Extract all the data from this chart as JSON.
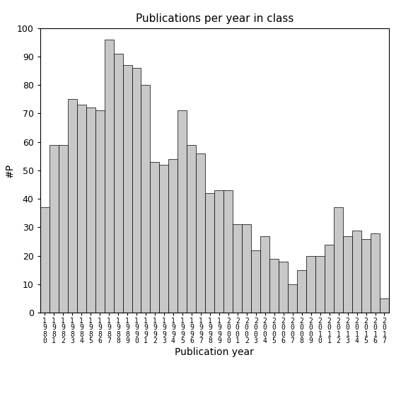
{
  "title": "Publications per year in class",
  "xlabel": "Publication year",
  "ylabel": "#P",
  "bar_color": "#c8c8c8",
  "bar_edge_color": "#000000",
  "bar_edge_width": 0.5,
  "ylim": [
    0,
    100
  ],
  "yticks": [
    0,
    10,
    20,
    30,
    40,
    50,
    60,
    70,
    80,
    90,
    100
  ],
  "years": [
    "1980",
    "1981",
    "1982",
    "1983",
    "1984",
    "1985",
    "1986",
    "1987",
    "1988",
    "1989",
    "1990",
    "1991",
    "1992",
    "1993",
    "1994",
    "1995",
    "1996",
    "1997",
    "1998",
    "1999",
    "2000",
    "2001",
    "2002",
    "2003",
    "2004",
    "2005",
    "2006",
    "2007",
    "2008",
    "2009",
    "2010",
    "2011",
    "2012",
    "2013",
    "2014",
    "2015",
    "2016",
    "2017"
  ],
  "values": [
    37,
    59,
    59,
    75,
    73,
    72,
    71,
    96,
    91,
    87,
    86,
    80,
    53,
    52,
    54,
    71,
    59,
    56,
    42,
    43,
    43,
    31,
    31,
    22,
    27,
    19,
    18,
    10,
    15,
    20,
    20,
    24,
    37,
    27,
    29,
    26,
    28,
    5
  ],
  "figsize": [
    5.67,
    5.67
  ],
  "dpi": 100
}
